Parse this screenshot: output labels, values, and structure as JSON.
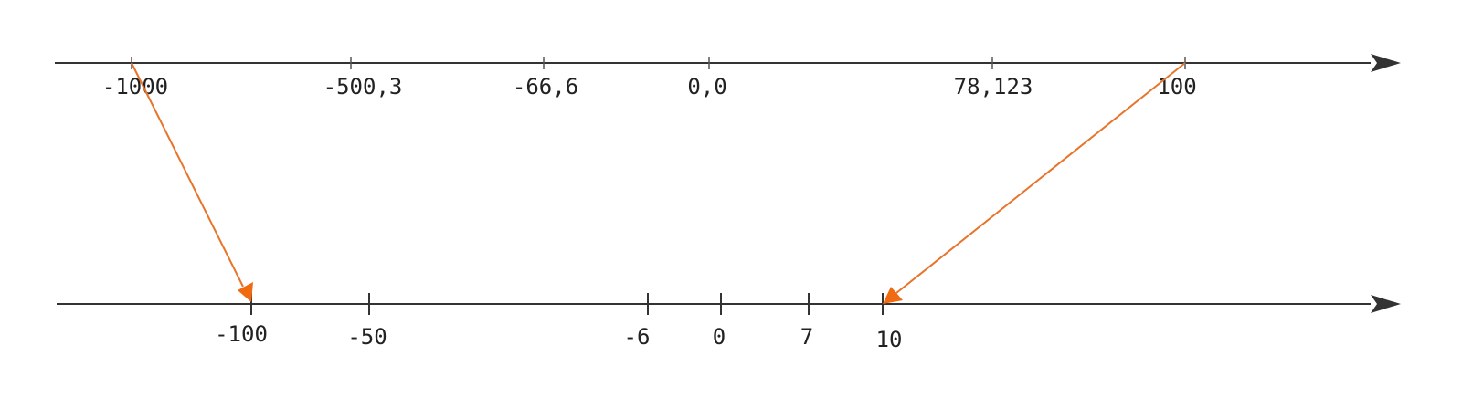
{
  "colors": {
    "axis": "#333333",
    "mapping_arrow": "#e8742a",
    "mapping_arrowhead": "#f06a12"
  },
  "top_axis": {
    "ticks": [
      {
        "label": "-1000"
      },
      {
        "label": "-500,3"
      },
      {
        "label": "-66,6"
      },
      {
        "label": "0,0"
      },
      {
        "label": "78,123"
      },
      {
        "label": "100"
      }
    ]
  },
  "bottom_axis": {
    "ticks": [
      {
        "label": "-100"
      },
      {
        "label": "-50"
      },
      {
        "label": "-6"
      },
      {
        "label": "0"
      },
      {
        "label": "7"
      },
      {
        "label": "10"
      }
    ]
  },
  "mappings": [
    {
      "from": "-1000",
      "to": "-100"
    },
    {
      "from": "100",
      "to": "10"
    }
  ]
}
